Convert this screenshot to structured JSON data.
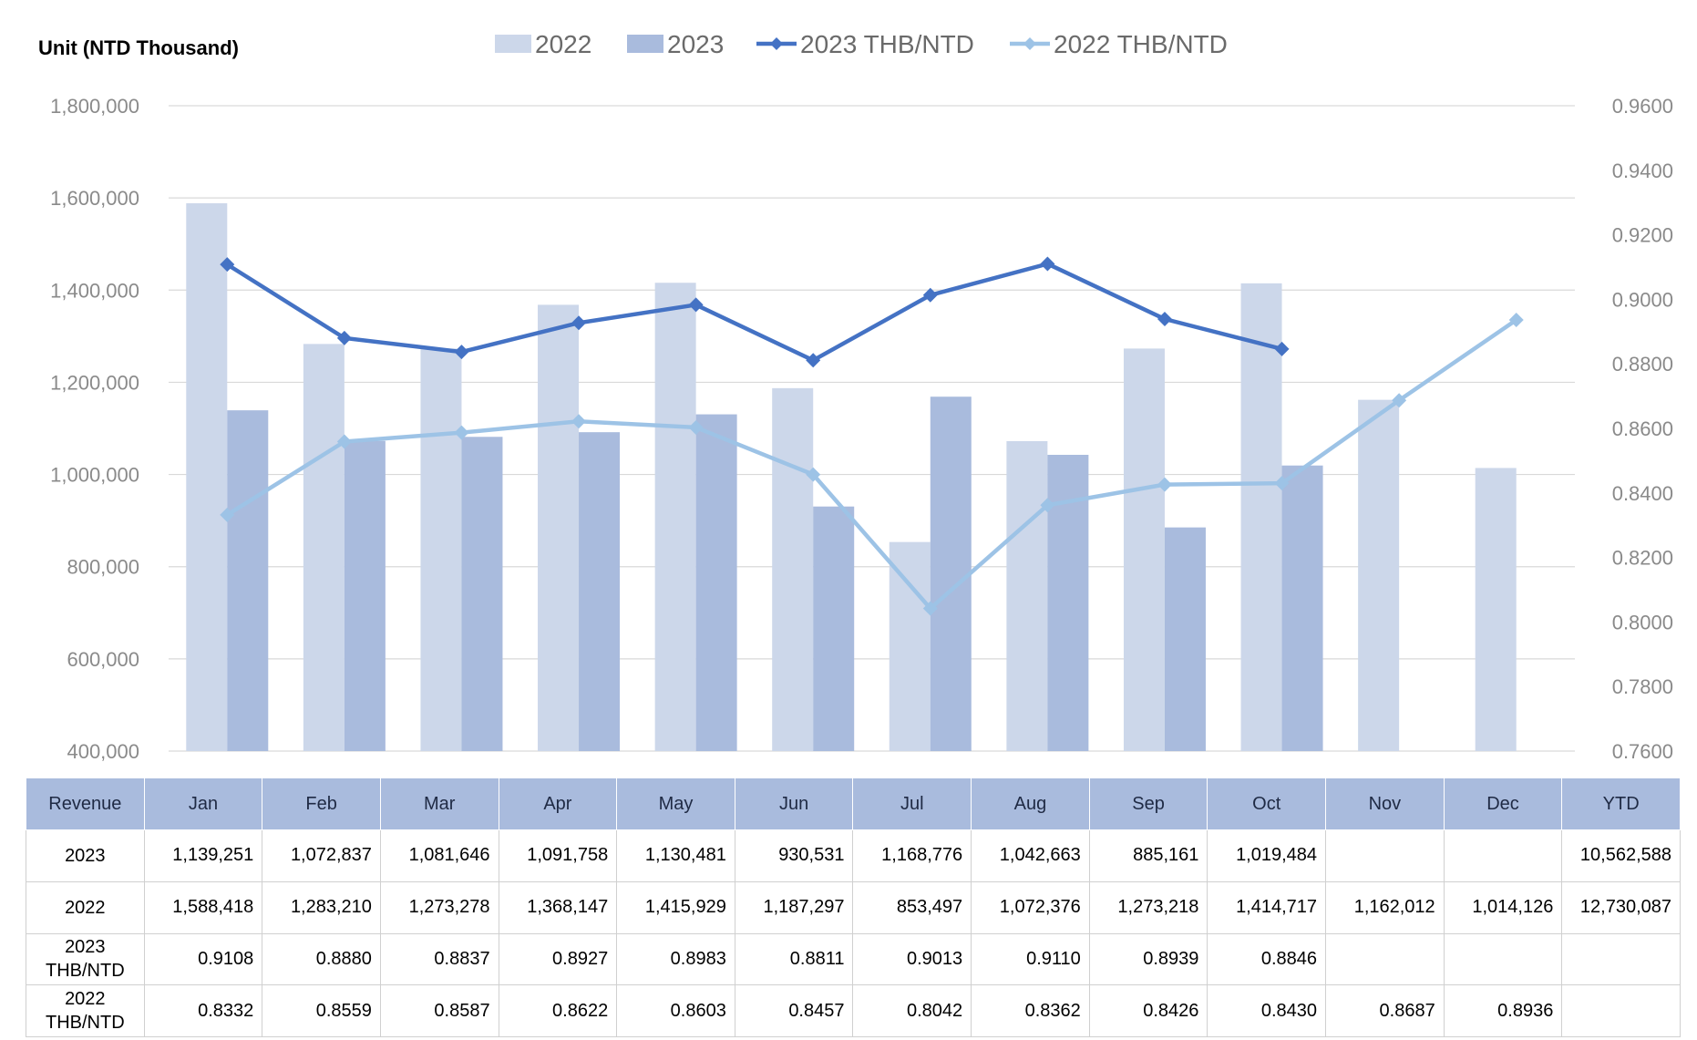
{
  "unit_label": "Unit (NTD  Thousand)",
  "colors": {
    "bar_2022": "#ccd7ea",
    "bar_2023": "#a9bbdd",
    "line_2023": "#4472c4",
    "line_2022": "#9dc3e6",
    "grid": "#d9d9d9",
    "table_header": "#a9bbdd"
  },
  "chart_data": {
    "type": "bar+line",
    "categories": [
      "Jan",
      "Feb",
      "Mar",
      "Apr",
      "May",
      "Jun",
      "Jul",
      "Aug",
      "Sep",
      "Oct",
      "Nov",
      "Dec"
    ],
    "series": [
      {
        "name": "2022",
        "type": "bar",
        "axis": "left",
        "values": [
          1588418,
          1283210,
          1273278,
          1368147,
          1415929,
          1187297,
          853497,
          1072376,
          1273218,
          1414717,
          1162012,
          1014126
        ]
      },
      {
        "name": "2023",
        "type": "bar",
        "axis": "left",
        "values": [
          1139251,
          1072837,
          1081646,
          1091758,
          1130481,
          930531,
          1168776,
          1042663,
          885161,
          1019484,
          null,
          null
        ]
      },
      {
        "name": "2023 THB/NTD",
        "type": "line",
        "axis": "right",
        "values": [
          0.9108,
          0.888,
          0.8837,
          0.8927,
          0.8983,
          0.8811,
          0.9013,
          0.911,
          0.8939,
          0.8846,
          null,
          null
        ]
      },
      {
        "name": "2022 THB/NTD",
        "type": "line",
        "axis": "right",
        "values": [
          0.8332,
          0.8559,
          0.8587,
          0.8622,
          0.8603,
          0.8457,
          0.8042,
          0.8362,
          0.8426,
          0.843,
          0.8687,
          0.8936
        ]
      }
    ],
    "y_left": {
      "min": 400000,
      "max": 1800000,
      "step": 200000,
      "tick_labels": [
        "400,000",
        "600,000",
        "800,000",
        "1,000,000",
        "1,200,000",
        "1,400,000",
        "1,600,000",
        "1,800,000"
      ]
    },
    "y_right": {
      "min": 0.76,
      "max": 0.96,
      "step": 0.02,
      "tick_labels": [
        "0.7600",
        "0.7800",
        "0.8000",
        "0.8200",
        "0.8400",
        "0.8600",
        "0.8800",
        "0.9000",
        "0.9200",
        "0.9400",
        "0.9600"
      ]
    },
    "grid": "horizontal",
    "legend_position": "top"
  },
  "table": {
    "headers": [
      "Revenue",
      "Jan",
      "Feb",
      "Mar",
      "Apr",
      "May",
      "Jun",
      "Jul",
      "Aug",
      "Sep",
      "Oct",
      "Nov",
      "Dec",
      "YTD"
    ],
    "rows": [
      {
        "label_lines": [
          "2023"
        ],
        "cells": [
          "1,139,251",
          "1,072,837",
          "1,081,646",
          "1,091,758",
          "1,130,481",
          "930,531",
          "1,168,776",
          "1,042,663",
          "885,161",
          "1,019,484",
          "",
          "",
          "10,562,588"
        ]
      },
      {
        "label_lines": [
          "2022"
        ],
        "cells": [
          "1,588,418",
          "1,283,210",
          "1,273,278",
          "1,368,147",
          "1,415,929",
          "1,187,297",
          "853,497",
          "1,072,376",
          "1,273,218",
          "1,414,717",
          "1,162,012",
          "1,014,126",
          "12,730,087"
        ]
      },
      {
        "label_lines": [
          "2023",
          "THB/NTD"
        ],
        "cells": [
          "0.9108",
          "0.8880",
          "0.8837",
          "0.8927",
          "0.8983",
          "0.8811",
          "0.9013",
          "0.9110",
          "0.8939",
          "0.8846",
          "",
          "",
          ""
        ]
      },
      {
        "label_lines": [
          "2022",
          "THB/NTD"
        ],
        "cells": [
          "0.8332",
          "0.8559",
          "0.8587",
          "0.8622",
          "0.8603",
          "0.8457",
          "0.8042",
          "0.8362",
          "0.8426",
          "0.8430",
          "0.8687",
          "0.8936",
          ""
        ]
      }
    ]
  }
}
